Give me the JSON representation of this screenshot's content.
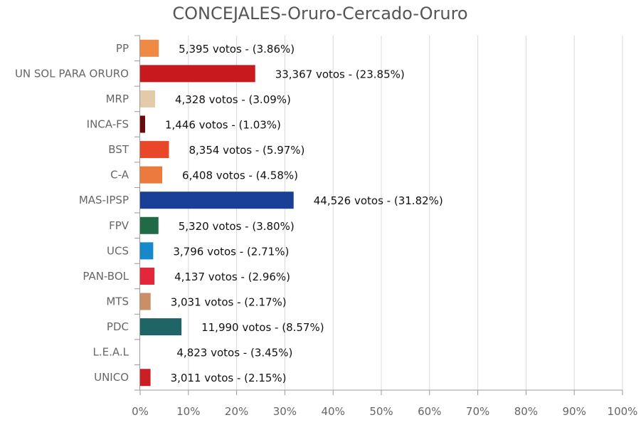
{
  "chart_data": {
    "type": "bar",
    "orientation": "horizontal",
    "title": "CONCEJALES-Oruro-Cercado-Oruro",
    "categories": [
      "PP",
      "UN SOL PARA ORURO",
      "MRP",
      "INCA-FS",
      "BST",
      "C-A",
      "MAS-IPSP",
      "FPV",
      "UCS",
      "PAN-BOL",
      "MTS",
      "PDC",
      "L.E.A.L",
      "UNICO"
    ],
    "votes": [
      5395,
      33367,
      4328,
      1446,
      8354,
      6408,
      44526,
      5320,
      3796,
      4137,
      3031,
      11990,
      4823,
      3011
    ],
    "values": [
      3.86,
      23.85,
      3.09,
      1.03,
      5.97,
      4.58,
      31.82,
      3.8,
      2.71,
      2.96,
      2.17,
      8.57,
      3.45,
      2.15
    ],
    "data_labels": [
      "5,395 votos - (3.86%)",
      "33,367 votos - (23.85%)",
      "4,328 votos - (3.09%)",
      "1,446 votos - (1.03%)",
      "8,354 votos - (5.97%)",
      "6,408 votos - (4.58%)",
      "44,526 votos - (31.82%)",
      "5,320 votos - (3.80%)",
      "3,796 votos - (2.71%)",
      "4,137 votos - (2.96%)",
      "3,031 votos - (2.17%)",
      "11,990 votos - (8.57%)",
      "4,823 votos - (3.45%)",
      "3,011 votos - (2.15%)"
    ],
    "colors": [
      "#ef8a45",
      "#c8191e",
      "#e3cba9",
      "#6b0a0a",
      "#e8472a",
      "#ed7a3d",
      "#1a3f96",
      "#1e6b46",
      "#1589c9",
      "#e3263a",
      "#c98f66",
      "#1f6568",
      "#ffffff",
      "#cc1f25"
    ],
    "xlim": [
      0,
      100
    ],
    "xticks": [
      "0%",
      "10%",
      "20%",
      "30%",
      "40%",
      "50%",
      "60%",
      "70%",
      "80%",
      "90%",
      "100%"
    ],
    "grid": true,
    "xlabel": "",
    "ylabel": ""
  }
}
